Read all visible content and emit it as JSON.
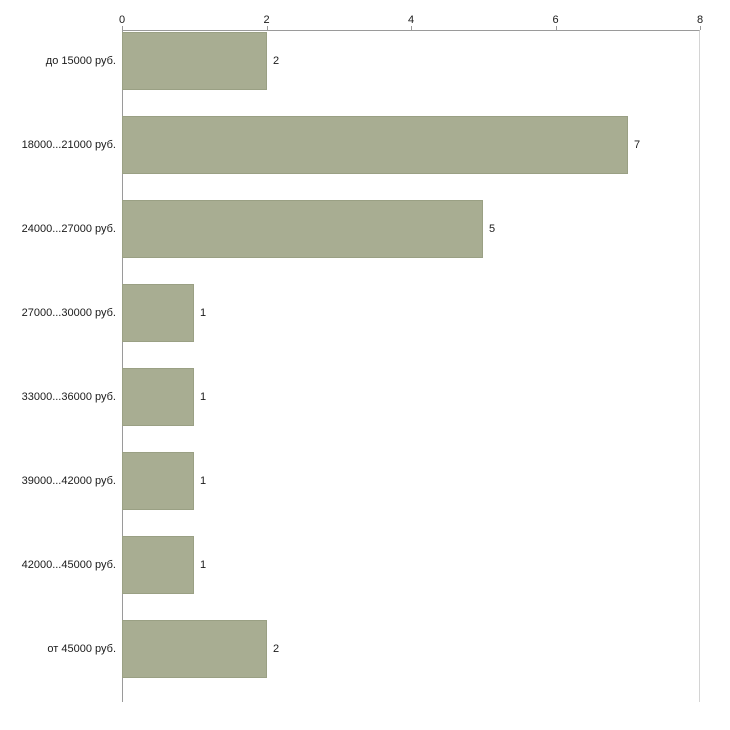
{
  "chart_data": {
    "type": "bar",
    "orientation": "horizontal",
    "title": "",
    "categories": [
      "до 15000 руб.",
      "18000...21000 руб.",
      "24000...27000 руб.",
      "27000...30000 руб.",
      "33000...36000 руб.",
      "39000...42000 руб.",
      "42000...45000 руб.",
      "от 45000 руб."
    ],
    "values": [
      2,
      7,
      5,
      1,
      1,
      1,
      1,
      2
    ],
    "value_labels": [
      "2",
      "7",
      "5",
      "1",
      "1",
      "1",
      "1",
      "2"
    ],
    "xlabel": "",
    "ylabel": "",
    "xlim": [
      0,
      8
    ],
    "xticks": [
      "0",
      "2",
      "4",
      "6",
      "8"
    ],
    "grid": false,
    "legend": "none",
    "axis_position": "top",
    "colors": {
      "bar_fill": "#a8ad92",
      "bar_border": "#9aa084",
      "axis_line": "#9a9a9a",
      "text": "#1a1a1a",
      "background": "#ffffff"
    }
  }
}
